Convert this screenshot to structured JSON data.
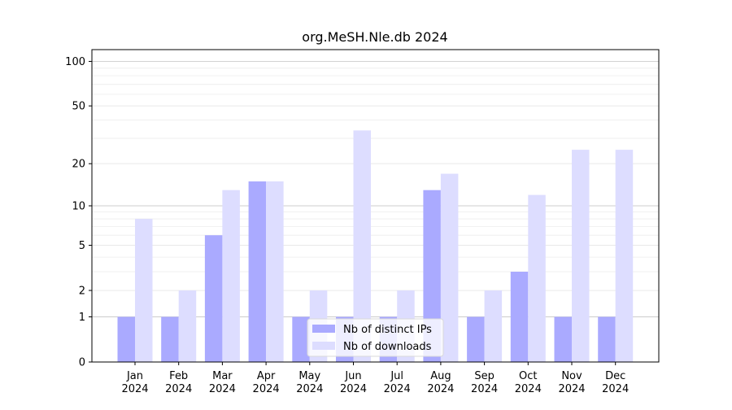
{
  "chart_data": {
    "type": "bar",
    "title": "org.MeSH.Nle.db 2024",
    "xlabel": "",
    "ylabel": "",
    "y_scale": "log1p",
    "ylim": [
      0,
      120
    ],
    "y_ticks": [
      {
        "value": 0,
        "label": "0"
      },
      {
        "value": 1,
        "label": "1"
      },
      {
        "value": 2,
        "label": "2"
      },
      {
        "value": 5,
        "label": "5"
      },
      {
        "value": 10,
        "label": "10"
      },
      {
        "value": 20,
        "label": "20"
      },
      {
        "value": 50,
        "label": "50"
      },
      {
        "value": 100,
        "label": "100"
      }
    ],
    "categories": [
      {
        "month": "Jan",
        "year": "2024"
      },
      {
        "month": "Feb",
        "year": "2024"
      },
      {
        "month": "Mar",
        "year": "2024"
      },
      {
        "month": "Apr",
        "year": "2024"
      },
      {
        "month": "May",
        "year": "2024"
      },
      {
        "month": "Jun",
        "year": "2024"
      },
      {
        "month": "Jul",
        "year": "2024"
      },
      {
        "month": "Aug",
        "year": "2024"
      },
      {
        "month": "Sep",
        "year": "2024"
      },
      {
        "month": "Oct",
        "year": "2024"
      },
      {
        "month": "Nov",
        "year": "2024"
      },
      {
        "month": "Dec",
        "year": "2024"
      }
    ],
    "series": [
      {
        "name": "Nb of distinct IPs",
        "color": "#aaaaff",
        "values": [
          1,
          1,
          6,
          15,
          1,
          1,
          1,
          13,
          1,
          3,
          1,
          1
        ]
      },
      {
        "name": "Nb of downloads",
        "color": "#ddddff",
        "values": [
          8,
          2,
          13,
          15,
          2,
          34,
          2,
          17,
          2,
          12,
          25,
          25
        ]
      }
    ],
    "grid": "horizontal",
    "legend_position": "bottom-center"
  }
}
